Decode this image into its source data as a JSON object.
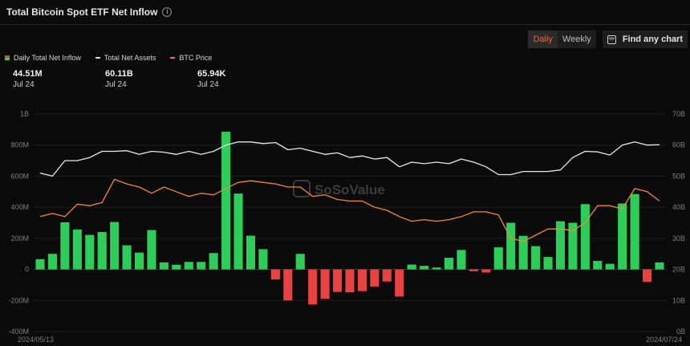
{
  "header": {
    "title": "Total Bitcoin Spot ETF Net Inflow"
  },
  "controls": {
    "period_tabs": [
      "Daliy",
      "Weekly"
    ],
    "active_tab": "Daliy",
    "find_chart_label": "Find any chart"
  },
  "legend": [
    {
      "label": "Daily Total Net Inflow",
      "value": "44.51M",
      "date": "Jul 24"
    },
    {
      "label": "Total Net Assets",
      "value": "60.11B",
      "date": "Jul 24"
    },
    {
      "label": "BTC Price",
      "value": "65.94K",
      "date": "Jul 24"
    }
  ],
  "colors": {
    "inflow_positive": "#2ecc59",
    "inflow_negative": "#e94242",
    "total_net_assets": "#e8e8e8",
    "btc_price": "#f08a2e",
    "background": "#0b0b0b"
  },
  "watermark": "SoSoValue",
  "chart_data": {
    "type": "bar",
    "left_axis": {
      "ticks": [
        "-400M",
        "-200M",
        "0",
        "200M",
        "400M",
        "600M",
        "800M",
        "1B"
      ],
      "ylim": [
        -400,
        1000
      ]
    },
    "right_axis": {
      "ticks": [
        "0B",
        "10B",
        "20B",
        "30B",
        "40B",
        "50B",
        "60B",
        "70B"
      ],
      "ylim": [
        0,
        70
      ]
    },
    "x_labels": [
      "2024/05/13",
      "2024/07/24"
    ],
    "grid": true,
    "legend_position": "top-left",
    "series": [
      {
        "name": "Daily Total Net Inflow",
        "type": "bar",
        "axis": "left",
        "values": [
          66,
          100,
          303,
          257,
          222,
          241,
          305,
          155,
          108,
          253,
          45,
          30,
          48,
          48,
          105,
          886,
          488,
          217,
          130,
          -65,
          -200,
          100,
          -226,
          -190,
          -145,
          -148,
          -140,
          -110,
          -78,
          -175,
          31,
          23,
          12,
          75,
          125,
          -12,
          -20,
          142,
          300,
          216,
          150,
          80,
          310,
          300,
          420,
          55,
          36,
          424,
          485,
          -80,
          45
        ]
      },
      {
        "name": "Total Net Assets",
        "type": "line",
        "axis": "right",
        "values": [
          51,
          50,
          55,
          55,
          56,
          58,
          58,
          58.2,
          57,
          58,
          57.7,
          57,
          58,
          57,
          58,
          60,
          61,
          61,
          60.5,
          60.8,
          58.5,
          59,
          58,
          57,
          57.5,
          56,
          56.5,
          55.5,
          56,
          53,
          54.5,
          54,
          54.5,
          54,
          55.5,
          54.5,
          53,
          50.5,
          50.5,
          51.5,
          51.5,
          51.5,
          52,
          56,
          58,
          57.8,
          56.8,
          60,
          61,
          60,
          60.11
        ]
      },
      {
        "name": "BTC Price",
        "type": "line",
        "axis": "right",
        "values": [
          37,
          38,
          37,
          41,
          40.5,
          41.5,
          49,
          47.5,
          46.5,
          44.5,
          46.5,
          45,
          43.5,
          44.5,
          44,
          46,
          48,
          48.5,
          48,
          47.5,
          46.5,
          46.5,
          43.5,
          44,
          42.5,
          42,
          42,
          40,
          39,
          37,
          35.5,
          36,
          35.5,
          36,
          37,
          38.5,
          38.5,
          37.5,
          30,
          29,
          31,
          33,
          33,
          32.5,
          35,
          40.5,
          40.5,
          39.5,
          46,
          45,
          42
        ]
      }
    ]
  }
}
